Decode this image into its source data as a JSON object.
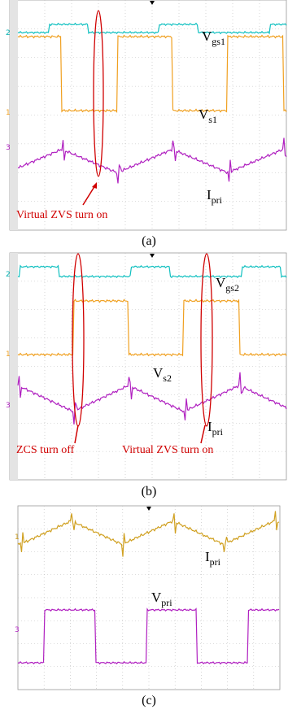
{
  "panels": [
    {
      "caption": "(a)",
      "channels": [
        "2",
        "1",
        "3"
      ],
      "labels": [
        {
          "base": "V",
          "sub": "gs1"
        },
        {
          "base": "V",
          "sub": "s1"
        },
        {
          "base": "I",
          "sub": "pri"
        }
      ],
      "annotations": [
        "Virtual ZVS turn on"
      ]
    },
    {
      "caption": "(b)",
      "channels": [
        "2",
        "1",
        "3"
      ],
      "labels": [
        {
          "base": "V",
          "sub": "gs2"
        },
        {
          "base": "V",
          "sub": "s2"
        },
        {
          "base": "I",
          "sub": "pri"
        }
      ],
      "annotations": [
        "ZCS turn off",
        "Virtual ZVS turn on"
      ]
    },
    {
      "caption": "(c)",
      "channels": [
        "1",
        "3"
      ],
      "labels": [
        {
          "base": "I",
          "sub": "pri"
        },
        {
          "base": "V",
          "sub": "pri"
        }
      ],
      "annotations": []
    }
  ]
}
